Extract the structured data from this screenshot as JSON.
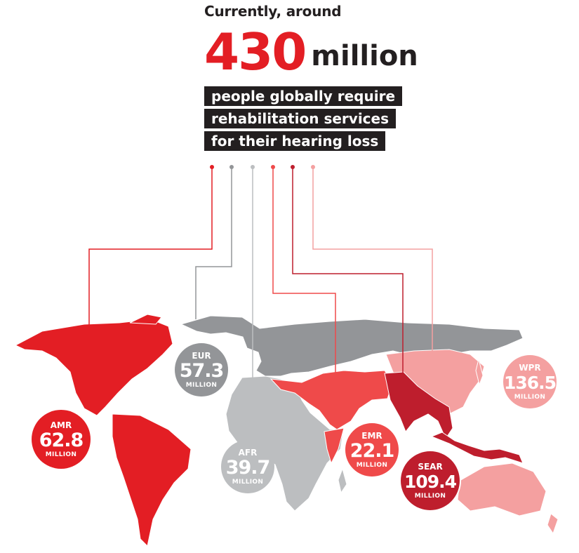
{
  "header": {
    "intro": "Currently, around",
    "big_number": "430",
    "big_unit": "million",
    "lines": [
      "people globally require",
      "rehabilitation services",
      "for their hearing loss"
    ]
  },
  "colors": {
    "AMR": "#e31e24",
    "EUR": "#939598",
    "AFR": "#bcbec0",
    "EMR": "#ef4a4a",
    "SEAR": "#be1e2d",
    "WPR": "#f4a0a0",
    "text_dark": "#231f20"
  },
  "chart_data": {
    "type": "map-bubble",
    "unit": "MILLION",
    "regions": [
      {
        "code": "AMR",
        "value": 62.8
      },
      {
        "code": "EUR",
        "value": 57.3
      },
      {
        "code": "AFR",
        "value": 39.7
      },
      {
        "code": "EMR",
        "value": 22.1
      },
      {
        "code": "SEAR",
        "value": 109.4
      },
      {
        "code": "WPR",
        "value": 136.5
      }
    ]
  }
}
